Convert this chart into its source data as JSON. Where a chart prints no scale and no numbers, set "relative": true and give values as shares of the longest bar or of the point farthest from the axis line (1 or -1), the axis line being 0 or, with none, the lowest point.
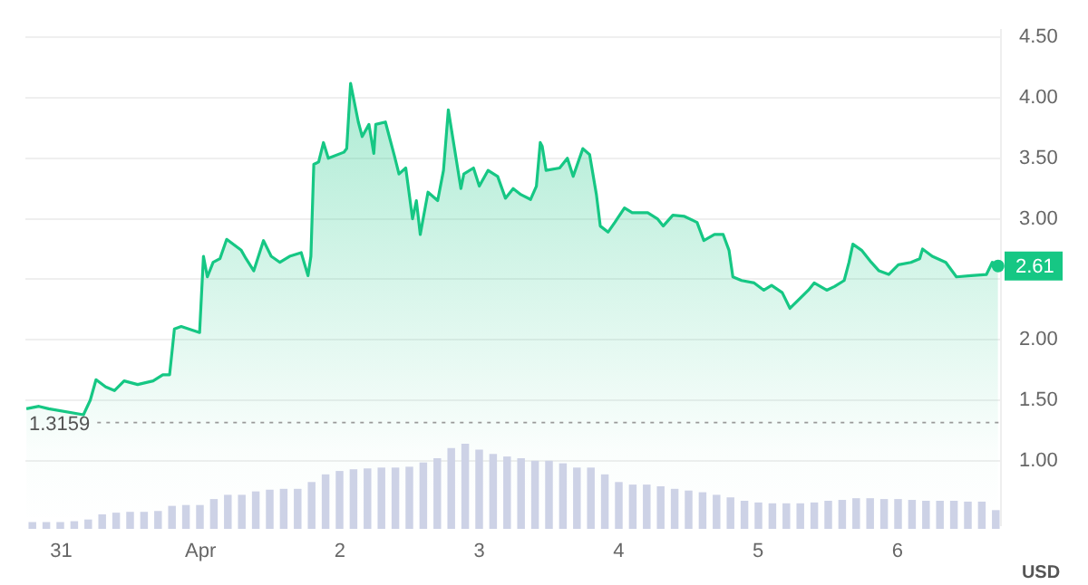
{
  "chart_data": [
    {
      "type": "area",
      "ylabel": "USD",
      "xlim": [
        "--03-30T17:50",
        "--04-06T17:50"
      ],
      "ylim": [
        0.47,
        4.56
      ],
      "xticks": [
        {
          "value": "--03-31",
          "label": "31"
        },
        {
          "value": "--04-01",
          "label": "Apr"
        },
        {
          "value": "--04-02",
          "label": "2"
        },
        {
          "value": "--04-03",
          "label": "3"
        },
        {
          "value": "--04-04",
          "label": "4"
        },
        {
          "value": "--04-05",
          "label": "5"
        },
        {
          "value": "--04-06",
          "label": "6"
        }
      ],
      "yticks": [
        {
          "value": 1,
          "label": "1.00"
        },
        {
          "value": 1.5,
          "label": "1.50"
        },
        {
          "value": 2,
          "label": "2.00"
        },
        {
          "value": 2.5,
          "label": null
        },
        {
          "value": 3,
          "label": "3.00"
        },
        {
          "value": 3.5,
          "label": "3.50"
        },
        {
          "value": 4,
          "label": "4.00"
        },
        {
          "value": 4.5,
          "label": "4.50"
        }
      ],
      "grid": "y",
      "legend": false,
      "series": [
        {
          "color": "#16c784",
          "x": [
            "--03-30T18:00",
            "--03-30T20:10",
            "--03-30T21:50",
            "--03-31T03:50",
            "--03-31T05:00",
            "--03-31T06:00",
            "--03-31T07:40",
            "--03-31T09:10",
            "--03-31T10:50",
            "--03-31T13:10",
            "--03-31T15:50",
            "--03-31T17:30",
            "--03-31T18:40",
            "--03-31T19:30",
            "--03-31T20:40",
            "--03-31T23:50",
            "--04-01T00:30",
            "--04-01T01:10",
            "--04-01T02:10",
            "--04-01T03:20",
            "--04-01T04:30",
            "--04-01T07:00",
            "--04-01T07:50",
            "--04-01T09:10",
            "--04-01T10:50",
            "--04-01T12:10",
            "--04-01T13:40",
            "--04-01T15:20",
            "--04-01T17:20",
            "--04-01T18:30",
            "--04-01T19:00",
            "--04-01T19:30",
            "--04-01T20:20",
            "--04-01T21:10",
            "--04-01T22:00",
            "--04-02T00:40",
            "--04-02T01:10",
            "--04-02T01:50",
            "--04-02T03:10",
            "--04-02T03:50",
            "--04-02T05:00",
            "--04-02T05:50",
            "--04-02T06:10",
            "--04-02T07:50",
            "--04-02T09:20",
            "--04-02T10:10",
            "--04-02T11:20",
            "--04-02T12:30",
            "--04-02T13:10",
            "--04-02T13:50",
            "--04-02T15:10",
            "--04-02T16:50",
            "--04-02T17:50",
            "--04-02T18:40",
            "--04-02T19:30",
            "--04-02T20:50",
            "--04-02T21:20",
            "--04-02T23:00",
            "--04-03T00:00",
            "--04-03T01:30",
            "--04-03T03:10",
            "--04-03T04:30",
            "--04-03T05:50",
            "--04-03T07:10",
            "--04-03T08:50",
            "--04-03T09:50",
            "--04-03T10:30",
            "--04-03T10:50",
            "--04-03T11:30",
            "--04-03T13:50",
            "--04-03T15:10",
            "--04-03T16:10",
            "--04-03T17:50",
            "--04-03T19:00",
            "--04-03T20:10",
            "--04-03T20:50",
            "--04-03T22:10",
            "--04-03T23:20",
            "--04-04T01:00",
            "--04-04T02:20",
            "--04-04T05:00",
            "--04-04T06:40",
            "--04-04T07:40",
            "--04-04T09:20",
            "--04-04T11:20",
            "--04-04T13:30",
            "--04-04T14:40",
            "--04-04T16:30",
            "--04-04T18:00",
            "--04-04T19:00",
            "--04-04T19:40",
            "--04-04T21:10",
            "--04-04T23:20",
            "--04-05T01:00",
            "--04-05T02:20",
            "--04-05T04:10",
            "--04-05T05:30",
            "--04-05T07:10",
            "--04-05T08:40",
            "--04-05T09:40",
            "--04-05T11:50",
            "--04-05T13:10",
            "--04-05T14:50",
            "--04-05T15:40",
            "--04-05T16:20",
            "--04-05T17:50",
            "--04-05T19:30",
            "--04-05T20:50",
            "--04-05T22:30",
            "--04-06T00:10",
            "--04-06T02:20",
            "--04-06T03:50",
            "--04-06T04:20",
            "--04-06T06:00",
            "--04-06T08:20",
            "--04-06T10:10",
            "--04-06T12:40",
            "--04-06T15:20",
            "--04-06T16:20",
            "--04-06T17:20"
          ],
          "values": [
            1.43,
            1.45,
            1.43,
            1.38,
            1.5,
            1.67,
            1.61,
            1.58,
            1.66,
            1.63,
            1.66,
            1.71,
            1.71,
            2.09,
            2.11,
            2.06,
            2.69,
            2.52,
            2.64,
            2.67,
            2.83,
            2.74,
            2.67,
            2.57,
            2.82,
            2.69,
            2.64,
            2.69,
            2.72,
            2.53,
            2.69,
            3.45,
            3.47,
            3.63,
            3.5,
            3.55,
            3.58,
            4.12,
            3.8,
            3.68,
            3.78,
            3.54,
            3.78,
            3.8,
            3.53,
            3.37,
            3.42,
            3.0,
            3.15,
            2.87,
            3.22,
            3.15,
            3.4,
            3.9,
            3.65,
            3.25,
            3.37,
            3.42,
            3.27,
            3.4,
            3.35,
            3.17,
            3.25,
            3.2,
            3.16,
            3.27,
            3.63,
            3.6,
            3.4,
            3.42,
            3.5,
            3.35,
            3.58,
            3.53,
            3.2,
            2.94,
            2.89,
            2.97,
            3.09,
            3.05,
            3.05,
            3.0,
            2.94,
            3.03,
            3.02,
            2.97,
            2.82,
            2.87,
            2.87,
            2.74,
            2.52,
            2.49,
            2.47,
            2.41,
            2.45,
            2.39,
            2.26,
            2.34,
            2.41,
            2.47,
            2.41,
            2.44,
            2.49,
            2.64,
            2.79,
            2.74,
            2.64,
            2.57,
            2.54,
            2.62,
            2.64,
            2.67,
            2.75,
            2.69,
            2.64,
            2.52,
            2.53,
            2.54,
            2.64,
            2.61
          ]
        }
      ],
      "ref_lines": [
        {
          "axis": "y",
          "value": 1.3159,
          "label": "1.3159",
          "color": "#999999",
          "line_style": "dotted"
        }
      ],
      "annotations": [
        {
          "text": "2.61",
          "x": "--04-06T17:20",
          "y": 2.61
        }
      ]
    },
    {
      "type": "bar",
      "relative": true,
      "color": "#cdd2e6",
      "categories": [
        null,
        null,
        null,
        null,
        null,
        null,
        null,
        null,
        null,
        null,
        null,
        null,
        null,
        null,
        null,
        null,
        null,
        null,
        null,
        null,
        null,
        null,
        null,
        null,
        null,
        null,
        null,
        null,
        null,
        null,
        null,
        null,
        null,
        null,
        null,
        null,
        null,
        null,
        null,
        null,
        null,
        null,
        null,
        null,
        null,
        null,
        null,
        null,
        null,
        null,
        null,
        null,
        null,
        null,
        null,
        null,
        null,
        null,
        null,
        null,
        null,
        null,
        null,
        null,
        null,
        null,
        null,
        null,
        null,
        null
      ],
      "values": [
        0.08,
        0.08,
        0.08,
        0.09,
        0.11,
        0.17,
        0.19,
        0.2,
        0.2,
        0.21,
        0.27,
        0.28,
        0.28,
        0.35,
        0.4,
        0.4,
        0.44,
        0.46,
        0.47,
        0.47,
        0.55,
        0.64,
        0.68,
        0.7,
        0.71,
        0.72,
        0.72,
        0.73,
        0.78,
        0.83,
        0.95,
        1,
        0.93,
        0.88,
        0.85,
        0.83,
        0.8,
        0.8,
        0.77,
        0.72,
        0.72,
        0.64,
        0.55,
        0.52,
        0.52,
        0.5,
        0.47,
        0.45,
        0.43,
        0.4,
        0.37,
        0.33,
        0.31,
        0.3,
        0.3,
        0.3,
        0.31,
        0.33,
        0.34,
        0.36,
        0.36,
        0.35,
        0.35,
        0.34,
        0.33,
        0.33,
        0.33,
        0.32,
        0.32,
        0.22
      ]
    }
  ]
}
